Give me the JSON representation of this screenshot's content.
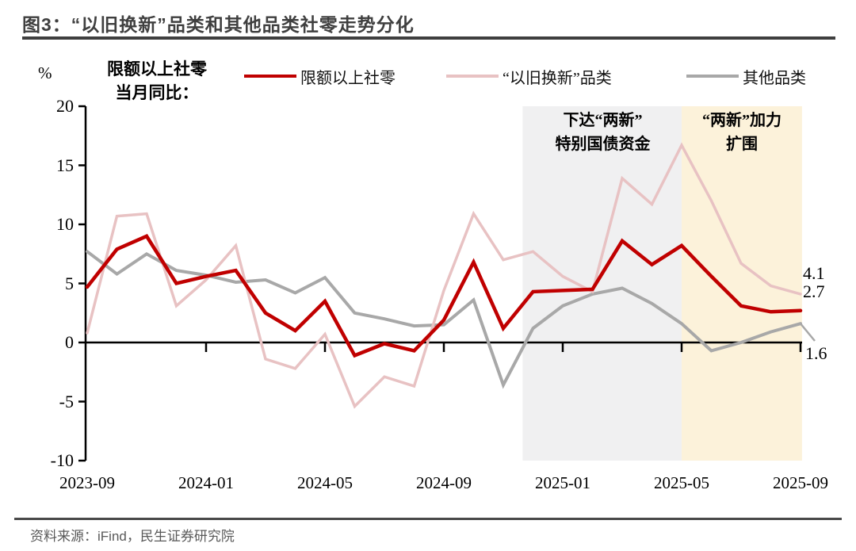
{
  "header": {
    "title": "图3：“以旧换新”品类和其他品类社零走势分化"
  },
  "chart": {
    "unit_label": "%",
    "note_line1": "限额以上社零",
    "note_line2": "当月同比："
  },
  "footer": {
    "source": "资料来源：iFind，民生证券研究院"
  },
  "chart_data": {
    "type": "line",
    "title": "“以旧换新”品类和其他品类社零走势分化",
    "ylabel": "%",
    "ylim": [
      -10,
      20
    ],
    "y_ticks": [
      20,
      15,
      10,
      5,
      0,
      -5,
      -10
    ],
    "grid": false,
    "legend_position": "top",
    "x": [
      "2023-09",
      "2023-10",
      "2023-11",
      "2023-12",
      "2024-01",
      "2024-02",
      "2024-03",
      "2024-04",
      "2024-05",
      "2024-06",
      "2024-07",
      "2024-08",
      "2024-09",
      "2024-10",
      "2024-11",
      "2024-12",
      "2025-01",
      "2025-02",
      "2025-03",
      "2025-04",
      "2025-05",
      "2025-06",
      "2025-07",
      "2025-08",
      "2025-09"
    ],
    "x_ticks": [
      {
        "label": "2023-09",
        "index": 0
      },
      {
        "label": "2024-01",
        "index": 4
      },
      {
        "label": "2024-05",
        "index": 8
      },
      {
        "label": "2024-09",
        "index": 12
      },
      {
        "label": "2025-01",
        "index": 16
      },
      {
        "label": "2025-05",
        "index": 20
      },
      {
        "label": "2025-09",
        "index": 24
      }
    ],
    "series": [
      {
        "name": "限额以上社零",
        "color": "#c00000",
        "end_label": "2.7",
        "values": [
          4.7,
          7.9,
          9.0,
          5.0,
          5.6,
          6.1,
          2.5,
          1.0,
          3.5,
          -1.1,
          -0.1,
          -0.7,
          1.9,
          6.8,
          1.2,
          4.3,
          4.4,
          4.5,
          8.6,
          6.6,
          8.2,
          5.6,
          3.1,
          2.6,
          2.7
        ]
      },
      {
        "name": "“以旧换新”品类",
        "color": "#e8c2c3",
        "end_label": "4.1",
        "values": [
          0.8,
          10.7,
          10.9,
          3.1,
          5.3,
          8.2,
          -1.4,
          -2.2,
          0.7,
          -5.4,
          -2.9,
          -3.7,
          4.4,
          10.9,
          7.0,
          7.7,
          5.6,
          4.3,
          13.9,
          11.7,
          16.7,
          12.0,
          6.7,
          4.8,
          4.1
        ]
      },
      {
        "name": "其他品类",
        "color": "#a8a8a8",
        "end_label": "1.6",
        "values": [
          7.7,
          5.8,
          7.5,
          6.1,
          5.7,
          5.1,
          5.3,
          4.2,
          5.5,
          2.5,
          2.0,
          1.4,
          1.5,
          3.6,
          -3.6,
          1.2,
          3.1,
          4.1,
          4.6,
          3.3,
          1.6,
          -0.7,
          0.0,
          0.9,
          1.6
        ]
      }
    ],
    "regions": [
      {
        "text_line1": "下达“两新”",
        "text_line2": "特别国债资金",
        "color": "#f0f0f1",
        "x_start_index": 14.65,
        "x_end_index": 20,
        "from": "2024-12",
        "to": "2025-05"
      },
      {
        "text_line1": "“两新”加力",
        "text_line2": "扩围",
        "color": "#fcf2da",
        "x_start_index": 20,
        "x_end_index": 24.05,
        "from": "2025-05",
        "to": "2025-09"
      }
    ]
  }
}
